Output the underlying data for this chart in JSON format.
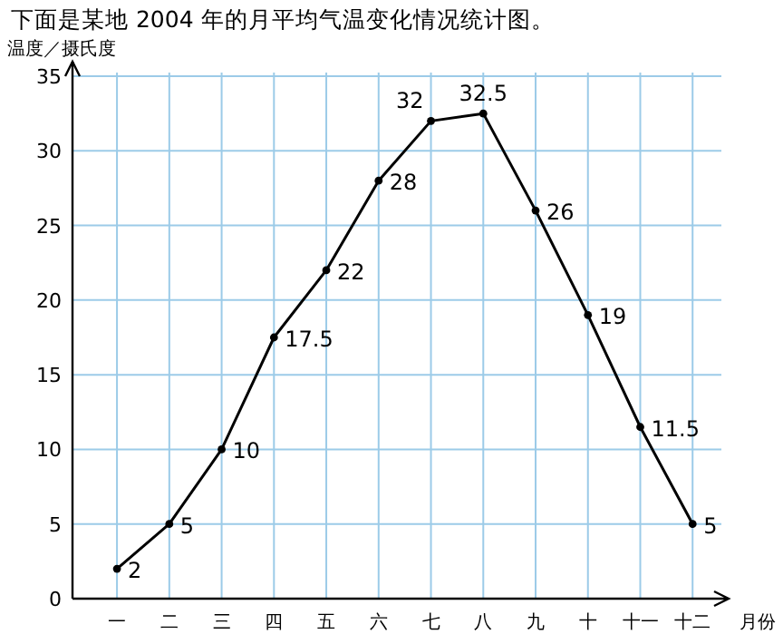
{
  "chart_data": {
    "type": "line",
    "title": "下面是某地 2004 年的月平均气温变化情况统计图。",
    "ylabel": "温度／摄氏度",
    "xlabel": "月份",
    "categories": [
      "一",
      "二",
      "三",
      "四",
      "五",
      "六",
      "七",
      "八",
      "九",
      "十",
      "十一",
      "十二"
    ],
    "series": [
      {
        "color": "#000000",
        "values": [
          2,
          5,
          10,
          17.5,
          22,
          28,
          32,
          32.5,
          26,
          19,
          11.5,
          5
        ]
      }
    ],
    "ylim": [
      0,
      35
    ],
    "yticks": [
      0,
      5,
      10,
      15,
      20,
      25,
      30,
      35
    ],
    "grid": true,
    "marker": "circle",
    "line_style": "solid",
    "data_labels": true
  }
}
